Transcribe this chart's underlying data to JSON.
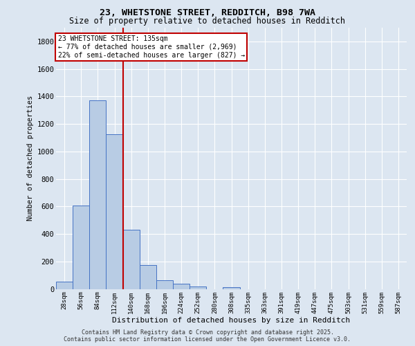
{
  "title_line1": "23, WHETSTONE STREET, REDDITCH, B98 7WA",
  "title_line2": "Size of property relative to detached houses in Redditch",
  "xlabel": "Distribution of detached houses by size in Redditch",
  "ylabel": "Number of detached properties",
  "categories": [
    "28sqm",
    "56sqm",
    "84sqm",
    "112sqm",
    "140sqm",
    "168sqm",
    "196sqm",
    "224sqm",
    "252sqm",
    "280sqm",
    "308sqm",
    "335sqm",
    "363sqm",
    "391sqm",
    "419sqm",
    "447sqm",
    "475sqm",
    "503sqm",
    "531sqm",
    "559sqm",
    "587sqm"
  ],
  "values": [
    55,
    605,
    1370,
    1125,
    430,
    175,
    65,
    40,
    20,
    0,
    15,
    0,
    0,
    0,
    0,
    0,
    0,
    0,
    0,
    0,
    0
  ],
  "bar_color": "#b8cce4",
  "bar_edge_color": "#4472c4",
  "vline_pos": 3.5,
  "vline_color": "#c00000",
  "annotation_text": "23 WHETSTONE STREET: 135sqm\n← 77% of detached houses are smaller (2,969)\n22% of semi-detached houses are larger (827) →",
  "annotation_box_color": "#c00000",
  "ylim": [
    0,
    1900
  ],
  "yticks": [
    0,
    200,
    400,
    600,
    800,
    1000,
    1200,
    1400,
    1600,
    1800
  ],
  "background_color": "#dce6f1",
  "grid_color": "#ffffff",
  "footer_line1": "Contains HM Land Registry data © Crown copyright and database right 2025.",
  "footer_line2": "Contains public sector information licensed under the Open Government Licence v3.0."
}
